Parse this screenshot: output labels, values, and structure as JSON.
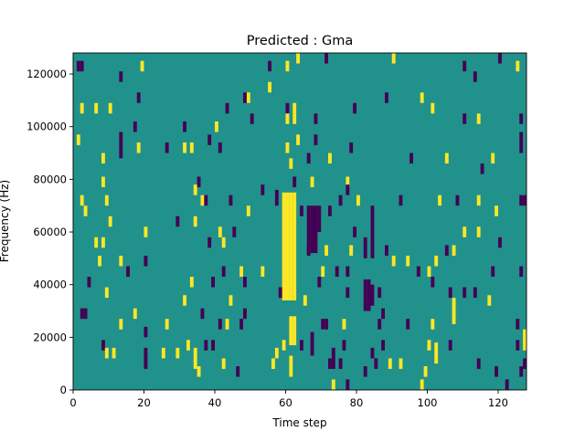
{
  "chart_data": {
    "type": "heatmap",
    "title": "Predicted : Gma",
    "xlabel": "Time step",
    "ylabel": "Frequency (Hz)",
    "xlim": [
      0,
      128
    ],
    "ylim": [
      0,
      128000
    ],
    "x_ticks": [
      0,
      20,
      40,
      60,
      80,
      100,
      120
    ],
    "y_ticks": [
      0,
      20000,
      40000,
      60000,
      80000,
      100000,
      120000
    ],
    "y_tick_labels": [
      "0",
      "20000",
      "40000",
      "60000",
      "80000",
      "100000",
      "120000"
    ],
    "freq_bin_hz": 1000,
    "colormap": "viridis",
    "colors": {
      "low": "#440154",
      "mid": "#21918c",
      "high": "#fde725"
    },
    "background_value": 0.5,
    "cell_format": "[time_step, freq_start_kHz, freq_length_kHz, value]",
    "cells": [
      [
        1,
        121,
        4,
        0
      ],
      [
        2,
        121,
        4,
        0
      ],
      [
        19,
        121,
        4,
        1
      ],
      [
        13,
        117,
        4,
        0
      ],
      [
        55,
        121,
        4,
        0
      ],
      [
        60,
        121,
        4,
        1
      ],
      [
        63,
        124,
        4,
        1
      ],
      [
        71,
        124,
        4,
        0
      ],
      [
        90,
        124,
        4,
        1
      ],
      [
        110,
        121,
        4,
        0
      ],
      [
        120,
        124,
        4,
        0
      ],
      [
        125,
        121,
        4,
        1
      ],
      [
        113,
        117,
        4,
        0
      ],
      [
        18,
        109,
        4,
        0
      ],
      [
        49,
        109,
        4,
        1
      ],
      [
        48,
        109,
        4,
        0
      ],
      [
        55,
        113,
        4,
        1
      ],
      [
        2,
        105,
        4,
        1
      ],
      [
        6,
        105,
        4,
        1
      ],
      [
        10,
        105,
        4,
        1
      ],
      [
        43,
        105,
        4,
        0
      ],
      [
        50,
        101,
        4,
        0
      ],
      [
        60,
        105,
        4,
        0
      ],
      [
        62,
        105,
        4,
        1
      ],
      [
        60,
        101,
        4,
        1
      ],
      [
        62,
        101,
        4,
        1
      ],
      [
        68,
        101,
        4,
        0
      ],
      [
        79,
        105,
        4,
        0
      ],
      [
        88,
        109,
        4,
        0
      ],
      [
        98,
        109,
        4,
        1
      ],
      [
        101,
        105,
        4,
        1
      ],
      [
        110,
        101,
        4,
        0
      ],
      [
        114,
        101,
        4,
        1
      ],
      [
        126,
        101,
        4,
        0
      ],
      [
        17,
        98,
        4,
        0
      ],
      [
        31,
        98,
        4,
        0
      ],
      [
        40,
        98,
        4,
        1
      ],
      [
        1,
        93,
        4,
        1
      ],
      [
        13,
        88,
        10,
        0
      ],
      [
        18,
        90,
        4,
        1
      ],
      [
        26,
        90,
        4,
        0
      ],
      [
        31,
        90,
        4,
        1
      ],
      [
        33,
        90,
        4,
        1
      ],
      [
        38,
        93,
        4,
        0
      ],
      [
        41,
        90,
        4,
        0
      ],
      [
        63,
        93,
        4,
        1
      ],
      [
        60,
        90,
        4,
        1
      ],
      [
        68,
        93,
        4,
        0
      ],
      [
        78,
        90,
        4,
        0
      ],
      [
        126,
        90,
        8,
        0
      ],
      [
        8,
        86,
        4,
        1
      ],
      [
        61,
        84,
        4,
        1
      ],
      [
        66,
        86,
        4,
        0
      ],
      [
        72,
        86,
        4,
        1
      ],
      [
        95,
        86,
        4,
        0
      ],
      [
        105,
        86,
        4,
        1
      ],
      [
        115,
        82,
        4,
        0
      ],
      [
        118,
        86,
        4,
        1
      ],
      [
        8,
        77,
        4,
        1
      ],
      [
        35,
        77,
        4,
        0
      ],
      [
        62,
        77,
        4,
        0
      ],
      [
        67,
        77,
        4,
        1
      ],
      [
        77,
        77,
        4,
        1
      ],
      [
        34,
        74,
        4,
        1
      ],
      [
        77,
        74,
        4,
        0
      ],
      [
        53,
        74,
        4,
        0
      ],
      [
        57,
        70,
        6,
        0
      ],
      [
        59,
        34,
        41,
        1
      ],
      [
        60,
        34,
        41,
        1
      ],
      [
        61,
        34,
        41,
        1
      ],
      [
        62,
        34,
        41,
        1
      ],
      [
        2,
        70,
        4,
        1
      ],
      [
        9,
        70,
        4,
        1
      ],
      [
        36,
        70,
        4,
        1
      ],
      [
        37,
        70,
        4,
        0
      ],
      [
        44,
        70,
        4,
        0
      ],
      [
        75,
        70,
        4,
        0
      ],
      [
        80,
        70,
        4,
        1
      ],
      [
        92,
        70,
        4,
        0
      ],
      [
        103,
        70,
        4,
        1
      ],
      [
        108,
        70,
        4,
        0
      ],
      [
        114,
        70,
        4,
        1
      ],
      [
        126,
        70,
        4,
        0
      ],
      [
        127,
        70,
        4,
        0
      ],
      [
        66,
        52,
        18,
        0
      ],
      [
        67,
        52,
        18,
        0
      ],
      [
        68,
        52,
        18,
        0
      ],
      [
        69,
        60,
        10,
        0
      ],
      [
        3,
        66,
        4,
        1
      ],
      [
        29,
        62,
        4,
        0
      ],
      [
        34,
        62,
        4,
        1
      ],
      [
        49,
        66,
        4,
        1
      ],
      [
        64,
        66,
        4,
        0
      ],
      [
        72,
        66,
        4,
        0
      ],
      [
        84,
        50,
        20,
        0
      ],
      [
        119,
        66,
        4,
        1
      ],
      [
        10,
        62,
        4,
        1
      ],
      [
        20,
        58,
        4,
        1
      ],
      [
        41,
        58,
        4,
        1
      ],
      [
        45,
        58,
        4,
        0
      ],
      [
        79,
        58,
        4,
        0
      ],
      [
        110,
        58,
        4,
        1
      ],
      [
        114,
        58,
        4,
        1
      ],
      [
        6,
        54,
        4,
        1
      ],
      [
        8,
        54,
        4,
        1
      ],
      [
        38,
        54,
        4,
        0
      ],
      [
        42,
        54,
        4,
        1
      ],
      [
        66,
        51,
        4,
        0
      ],
      [
        71,
        51,
        4,
        1
      ],
      [
        78,
        51,
        4,
        1
      ],
      [
        82,
        50,
        8,
        0
      ],
      [
        88,
        51,
        4,
        0
      ],
      [
        107,
        51,
        4,
        1
      ],
      [
        105,
        51,
        4,
        0
      ],
      [
        120,
        54,
        4,
        0
      ],
      [
        7,
        47,
        4,
        1
      ],
      [
        13,
        47,
        4,
        1
      ],
      [
        20,
        47,
        4,
        0
      ],
      [
        53,
        43,
        4,
        1
      ],
      [
        42,
        43,
        4,
        0
      ],
      [
        47,
        43,
        4,
        1
      ],
      [
        70,
        43,
        4,
        1
      ],
      [
        74,
        43,
        4,
        0
      ],
      [
        77,
        43,
        4,
        0
      ],
      [
        82,
        30,
        12,
        0
      ],
      [
        83,
        30,
        12,
        0
      ],
      [
        84,
        32,
        8,
        0
      ],
      [
        90,
        47,
        4,
        1
      ],
      [
        94,
        47,
        4,
        1
      ],
      [
        97,
        43,
        4,
        0
      ],
      [
        100,
        43,
        4,
        1
      ],
      [
        102,
        47,
        4,
        1
      ],
      [
        118,
        43,
        4,
        0
      ],
      [
        126,
        43,
        4,
        0
      ],
      [
        4,
        39,
        4,
        0
      ],
      [
        9,
        35,
        4,
        1
      ],
      [
        15,
        43,
        4,
        0
      ],
      [
        33,
        39,
        4,
        1
      ],
      [
        39,
        39,
        4,
        0
      ],
      [
        48,
        39,
        4,
        0
      ],
      [
        58,
        35,
        4,
        0
      ],
      [
        69,
        39,
        4,
        0
      ],
      [
        86,
        35,
        4,
        0
      ],
      [
        101,
        39,
        4,
        0
      ],
      [
        106,
        35,
        4,
        0
      ],
      [
        107,
        25,
        10,
        1
      ],
      [
        110,
        35,
        4,
        0
      ],
      [
        113,
        35,
        4,
        0
      ],
      [
        117,
        32,
        4,
        1
      ],
      [
        2,
        27,
        4,
        0
      ],
      [
        3,
        27,
        4,
        0
      ],
      [
        31,
        32,
        4,
        1
      ],
      [
        44,
        32,
        4,
        1
      ],
      [
        65,
        32,
        4,
        1
      ],
      [
        77,
        35,
        4,
        0
      ],
      [
        87,
        27,
        4,
        0
      ],
      [
        36,
        27,
        4,
        0
      ],
      [
        48,
        27,
        4,
        0
      ],
      [
        17,
        27,
        4,
        1
      ],
      [
        26,
        23,
        4,
        1
      ],
      [
        41,
        23,
        4,
        0
      ],
      [
        43,
        23,
        4,
        1
      ],
      [
        61,
        17,
        11,
        1
      ],
      [
        62,
        17,
        11,
        1
      ],
      [
        67,
        13,
        9,
        0
      ],
      [
        70,
        23,
        4,
        0
      ],
      [
        71,
        23,
        4,
        0
      ],
      [
        76,
        23,
        4,
        1
      ],
      [
        86,
        23,
        4,
        0
      ],
      [
        94,
        23,
        4,
        0
      ],
      [
        101,
        23,
        4,
        1
      ],
      [
        125,
        23,
        4,
        0
      ],
      [
        13,
        23,
        4,
        1
      ],
      [
        127,
        15,
        8,
        1
      ],
      [
        47,
        23,
        4,
        0
      ],
      [
        20,
        20,
        4,
        0
      ],
      [
        8,
        15,
        4,
        0
      ],
      [
        9,
        12,
        4,
        1
      ],
      [
        11,
        12,
        4,
        1
      ],
      [
        20,
        8,
        8,
        0
      ],
      [
        25,
        12,
        4,
        1
      ],
      [
        29,
        12,
        4,
        1
      ],
      [
        32,
        15,
        4,
        1
      ],
      [
        34,
        8,
        8,
        1
      ],
      [
        37,
        15,
        4,
        0
      ],
      [
        39,
        15,
        4,
        0
      ],
      [
        57,
        12,
        4,
        1
      ],
      [
        59,
        15,
        4,
        1
      ],
      [
        64,
        15,
        4,
        0
      ],
      [
        73,
        12,
        4,
        0
      ],
      [
        76,
        15,
        4,
        0
      ],
      [
        84,
        12,
        4,
        0
      ],
      [
        87,
        15,
        4,
        0
      ],
      [
        100,
        15,
        4,
        1
      ],
      [
        102,
        10,
        8,
        1
      ],
      [
        106,
        15,
        4,
        0
      ],
      [
        125,
        15,
        4,
        0
      ],
      [
        35,
        5,
        4,
        1
      ],
      [
        42,
        8,
        4,
        1
      ],
      [
        46,
        5,
        4,
        0
      ],
      [
        56,
        8,
        4,
        1
      ],
      [
        61,
        5,
        8,
        1
      ],
      [
        72,
        8,
        4,
        0
      ],
      [
        73,
        8,
        4,
        0
      ],
      [
        75,
        8,
        4,
        0
      ],
      [
        82,
        5,
        4,
        0
      ],
      [
        85,
        8,
        4,
        0
      ],
      [
        89,
        8,
        4,
        1
      ],
      [
        92,
        8,
        4,
        1
      ],
      [
        114,
        8,
        4,
        0
      ],
      [
        127,
        8,
        4,
        0
      ],
      [
        73,
        0,
        4,
        1
      ],
      [
        77,
        0,
        4,
        0
      ],
      [
        98,
        0,
        4,
        1
      ],
      [
        99,
        5,
        4,
        1
      ],
      [
        119,
        5,
        4,
        0
      ],
      [
        122,
        0,
        4,
        0
      ],
      [
        126,
        5,
        4,
        0
      ]
    ]
  }
}
